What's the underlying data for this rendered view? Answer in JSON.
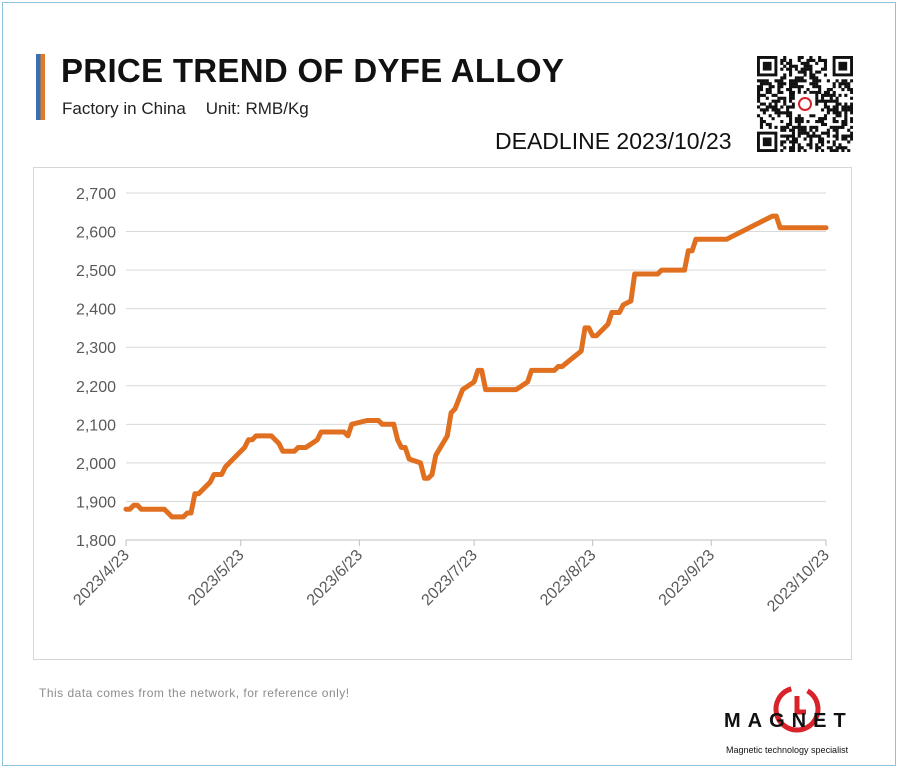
{
  "header": {
    "title": "PRICE TREND OF DYFE ALLOY",
    "subtitle_factory": "Factory in China",
    "subtitle_unit": "Unit: RMB/Kg",
    "deadline": "DEADLINE 2023/10/23"
  },
  "footer": {
    "note": "This data comes from the network, for reference only!",
    "logo_text": "MAGNET",
    "logo_tagline": "Magnetic technology specialist"
  },
  "colors": {
    "line": "#e07020",
    "accent_blue": "#3a6fb0",
    "accent_orange": "#e07a2a",
    "logo_red": "#d9232a"
  },
  "icons": [
    "qr-code-icon",
    "magnet-logo-icon"
  ],
  "chart_data": {
    "type": "line",
    "title": "PRICE TREND OF DYFE ALLOY",
    "xlabel": "",
    "ylabel": "",
    "x_tick_labels": [
      "2023/4/23",
      "2023/5/23",
      "2023/6/23",
      "2023/7/23",
      "2023/8/23",
      "2023/9/23",
      "2023/10/23"
    ],
    "y_tick_labels": [
      "1,800",
      "1,900",
      "2,000",
      "2,100",
      "2,200",
      "2,300",
      "2,400",
      "2,500",
      "2,600",
      "2,700"
    ],
    "ylim": [
      1800,
      2700
    ],
    "xlim": [
      "2023-04-23",
      "2023-10-23"
    ],
    "grid": "horizontal",
    "legend": "none",
    "series": [
      {
        "points": [
          [
            "2023-04-23",
            1880
          ],
          [
            "2023-04-24",
            1880
          ],
          [
            "2023-04-25",
            1890
          ],
          [
            "2023-04-26",
            1890
          ],
          [
            "2023-04-27",
            1880
          ],
          [
            "2023-05-03",
            1880
          ],
          [
            "2023-05-04",
            1870
          ],
          [
            "2023-05-05",
            1860
          ],
          [
            "2023-05-08",
            1860
          ],
          [
            "2023-05-09",
            1870
          ],
          [
            "2023-05-10",
            1870
          ],
          [
            "2023-05-11",
            1920
          ],
          [
            "2023-05-12",
            1920
          ],
          [
            "2023-05-15",
            1950
          ],
          [
            "2023-05-16",
            1970
          ],
          [
            "2023-05-18",
            1970
          ],
          [
            "2023-05-19",
            1990
          ],
          [
            "2023-05-23",
            2030
          ],
          [
            "2023-05-24",
            2040
          ],
          [
            "2023-05-25",
            2060
          ],
          [
            "2023-05-26",
            2060
          ],
          [
            "2023-05-27",
            2070
          ],
          [
            "2023-05-31",
            2070
          ],
          [
            "2023-06-02",
            2050
          ],
          [
            "2023-06-03",
            2030
          ],
          [
            "2023-06-06",
            2030
          ],
          [
            "2023-06-07",
            2040
          ],
          [
            "2023-06-09",
            2040
          ],
          [
            "2023-06-12",
            2060
          ],
          [
            "2023-06-13",
            2080
          ],
          [
            "2023-06-19",
            2080
          ],
          [
            "2023-06-20",
            2070
          ],
          [
            "2023-06-21",
            2100
          ],
          [
            "2023-06-25",
            2110
          ],
          [
            "2023-06-28",
            2110
          ],
          [
            "2023-06-29",
            2100
          ],
          [
            "2023-07-02",
            2100
          ],
          [
            "2023-07-03",
            2060
          ],
          [
            "2023-07-04",
            2040
          ],
          [
            "2023-07-05",
            2040
          ],
          [
            "2023-07-06",
            2010
          ],
          [
            "2023-07-09",
            2000
          ],
          [
            "2023-07-10",
            1960
          ],
          [
            "2023-07-11",
            1960
          ],
          [
            "2023-07-12",
            1970
          ],
          [
            "2023-07-13",
            2020
          ],
          [
            "2023-07-16",
            2070
          ],
          [
            "2023-07-17",
            2130
          ],
          [
            "2023-07-18",
            2140
          ],
          [
            "2023-07-20",
            2190
          ],
          [
            "2023-07-23",
            2210
          ],
          [
            "2023-07-24",
            2240
          ],
          [
            "2023-07-25",
            2240
          ],
          [
            "2023-07-26",
            2190
          ],
          [
            "2023-08-03",
            2190
          ],
          [
            "2023-08-06",
            2210
          ],
          [
            "2023-08-07",
            2240
          ],
          [
            "2023-08-13",
            2240
          ],
          [
            "2023-08-14",
            2250
          ],
          [
            "2023-08-15",
            2250
          ],
          [
            "2023-08-20",
            2290
          ],
          [
            "2023-08-21",
            2350
          ],
          [
            "2023-08-22",
            2350
          ],
          [
            "2023-08-23",
            2330
          ],
          [
            "2023-08-24",
            2330
          ],
          [
            "2023-08-27",
            2360
          ],
          [
            "2023-08-28",
            2390
          ],
          [
            "2023-08-30",
            2390
          ],
          [
            "2023-08-31",
            2410
          ],
          [
            "2023-09-02",
            2420
          ],
          [
            "2023-09-03",
            2490
          ],
          [
            "2023-09-09",
            2490
          ],
          [
            "2023-09-10",
            2500
          ],
          [
            "2023-09-16",
            2500
          ],
          [
            "2023-09-17",
            2550
          ],
          [
            "2023-09-18",
            2550
          ],
          [
            "2023-09-19",
            2580
          ],
          [
            "2023-09-27",
            2580
          ],
          [
            "2023-10-09",
            2640
          ],
          [
            "2023-10-10",
            2640
          ],
          [
            "2023-10-11",
            2610
          ],
          [
            "2023-10-23",
            2610
          ]
        ]
      }
    ]
  }
}
